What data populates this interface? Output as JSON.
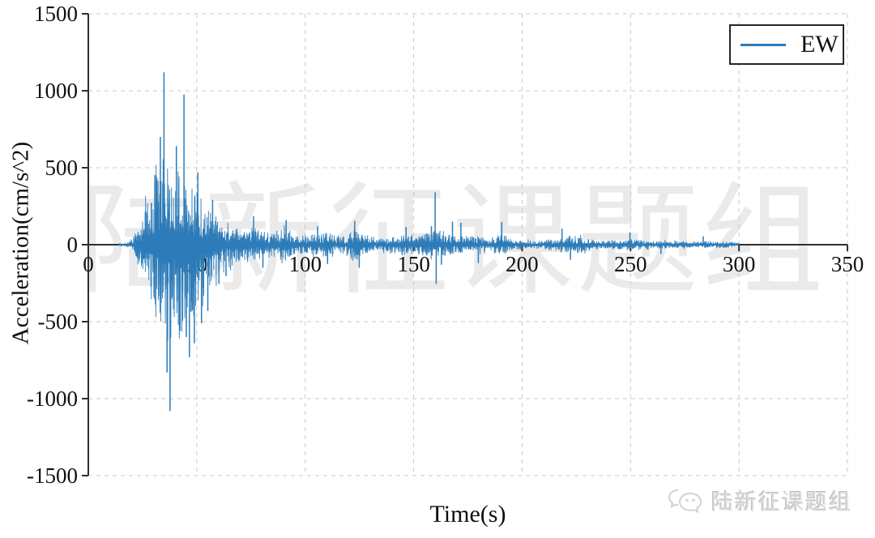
{
  "colors": {
    "line": "#2d7cb9",
    "legend_line": "#5b9ec9",
    "axis": "#2f2f2f",
    "grid": "#c9c9c9",
    "tick_text": "#111111",
    "watermark": "rgba(160,160,160,0.22)",
    "logo_text": "#dcdcdc"
  },
  "watermark": {
    "text": "陆新征课题组"
  },
  "logo": {
    "text": "陆新征课题组",
    "icon": "wechat-bubbles-icon"
  },
  "chart_data": {
    "type": "line",
    "title": "",
    "xlabel": "Time(s)",
    "ylabel": "Acceleration(cm/s^2)",
    "xlim": [
      0,
      350
    ],
    "ylim": [
      -1500,
      1500
    ],
    "xticks": [
      0,
      50,
      100,
      150,
      200,
      250,
      300,
      350
    ],
    "yticks": [
      -1500,
      -1000,
      -500,
      0,
      500,
      1000,
      1500
    ],
    "grid": "dashed",
    "legend": {
      "position": "top-right",
      "entries": [
        {
          "label": "EW",
          "color": "#2d7cb9"
        }
      ]
    },
    "series": [
      {
        "name": "EW",
        "signal_start_s": 14,
        "signal_end_s": 300,
        "peak_acceleration": 1120,
        "envelope": [
          [
            0,
            0,
            0
          ],
          [
            14,
            3,
            3
          ],
          [
            17,
            12,
            12
          ],
          [
            19,
            30,
            30
          ],
          [
            21,
            60,
            60
          ],
          [
            23,
            110,
            110
          ],
          [
            25,
            190,
            180
          ],
          [
            27,
            300,
            280
          ],
          [
            29,
            430,
            390
          ],
          [
            31,
            540,
            490
          ],
          [
            33,
            620,
            560
          ],
          [
            35,
            640,
            600
          ],
          [
            37,
            570,
            650
          ],
          [
            39,
            520,
            610
          ],
          [
            41,
            470,
            560
          ],
          [
            43,
            480,
            540
          ],
          [
            45,
            440,
            580
          ],
          [
            47,
            410,
            560
          ],
          [
            49,
            380,
            500
          ],
          [
            51,
            330,
            450
          ],
          [
            53,
            280,
            400
          ],
          [
            55,
            230,
            330
          ],
          [
            57,
            200,
            280
          ],
          [
            59,
            170,
            230
          ],
          [
            62,
            145,
            185
          ],
          [
            65,
            125,
            155
          ],
          [
            68,
            110,
            130
          ],
          [
            72,
            98,
            112
          ],
          [
            76,
            118,
            128
          ],
          [
            80,
            88,
            95
          ],
          [
            84,
            78,
            84
          ],
          [
            88,
            92,
            98
          ],
          [
            91,
            125,
            105
          ],
          [
            94,
            72,
            68
          ],
          [
            98,
            58,
            58
          ],
          [
            102,
            68,
            72
          ],
          [
            106,
            78,
            68
          ],
          [
            110,
            82,
            86
          ],
          [
            114,
            58,
            54
          ],
          [
            118,
            54,
            58
          ],
          [
            122,
            100,
            110
          ],
          [
            126,
            86,
            82
          ],
          [
            130,
            54,
            50
          ],
          [
            134,
            47,
            44
          ],
          [
            138,
            44,
            47
          ],
          [
            142,
            53,
            58
          ],
          [
            146,
            72,
            77
          ],
          [
            150,
            68,
            72
          ],
          [
            154,
            63,
            68
          ],
          [
            157,
            82,
            86
          ],
          [
            159,
            100,
            110
          ],
          [
            161,
            88,
            96
          ],
          [
            164,
            72,
            77
          ],
          [
            168,
            62,
            58
          ],
          [
            172,
            56,
            53
          ],
          [
            176,
            62,
            58
          ],
          [
            180,
            54,
            52
          ],
          [
            184,
            44,
            46
          ],
          [
            188,
            56,
            58
          ],
          [
            191,
            76,
            72
          ],
          [
            194,
            48,
            46
          ],
          [
            198,
            33,
            31
          ],
          [
            202,
            29,
            27
          ],
          [
            206,
            26,
            25
          ],
          [
            210,
            29,
            31
          ],
          [
            214,
            38,
            40
          ],
          [
            218,
            50,
            53
          ],
          [
            222,
            60,
            63
          ],
          [
            226,
            56,
            58
          ],
          [
            230,
            42,
            44
          ],
          [
            234,
            29,
            31
          ],
          [
            238,
            26,
            25
          ],
          [
            242,
            24,
            25
          ],
          [
            246,
            32,
            34
          ],
          [
            250,
            40,
            42
          ],
          [
            254,
            36,
            34
          ],
          [
            258,
            26,
            25
          ],
          [
            262,
            23,
            22
          ],
          [
            266,
            27,
            29
          ],
          [
            270,
            23,
            24
          ],
          [
            274,
            26,
            25
          ],
          [
            278,
            20,
            21
          ],
          [
            282,
            23,
            24
          ],
          [
            286,
            26,
            25
          ],
          [
            290,
            20,
            21
          ],
          [
            294,
            23,
            22
          ],
          [
            298,
            17,
            17
          ],
          [
            300,
            10,
            10
          ]
        ],
        "peaks": [
          [
            33.2,
            700
          ],
          [
            34.9,
            1120
          ],
          [
            36.3,
            -830
          ],
          [
            37.7,
            -1080
          ],
          [
            40.6,
            640
          ],
          [
            42.3,
            -560
          ],
          [
            44.1,
            975
          ],
          [
            45.2,
            -600
          ],
          [
            46.6,
            -730
          ],
          [
            48.9,
            -640
          ],
          [
            50.5,
            470
          ],
          [
            52.2,
            -510
          ],
          [
            55.1,
            -430
          ],
          [
            57.3,
            290
          ],
          [
            60.2,
            -255
          ],
          [
            63.5,
            -205
          ],
          [
            76.2,
            185
          ],
          [
            80.5,
            -150
          ],
          [
            91.2,
            160
          ],
          [
            105.7,
            120
          ],
          [
            110.3,
            -125
          ],
          [
            122.8,
            155
          ],
          [
            124.9,
            -150
          ],
          [
            146.5,
            115
          ],
          [
            158.2,
            120
          ],
          [
            159.9,
            340
          ],
          [
            160.4,
            -255
          ],
          [
            162.8,
            -130
          ],
          [
            167.9,
            150
          ],
          [
            171.8,
            142
          ],
          [
            179.8,
            -120
          ],
          [
            190.6,
            148
          ],
          [
            218.4,
            105
          ],
          [
            222.3,
            -98
          ],
          [
            249.7,
            80
          ],
          [
            264.0,
            -60
          ],
          [
            283.5,
            55
          ]
        ]
      }
    ]
  }
}
